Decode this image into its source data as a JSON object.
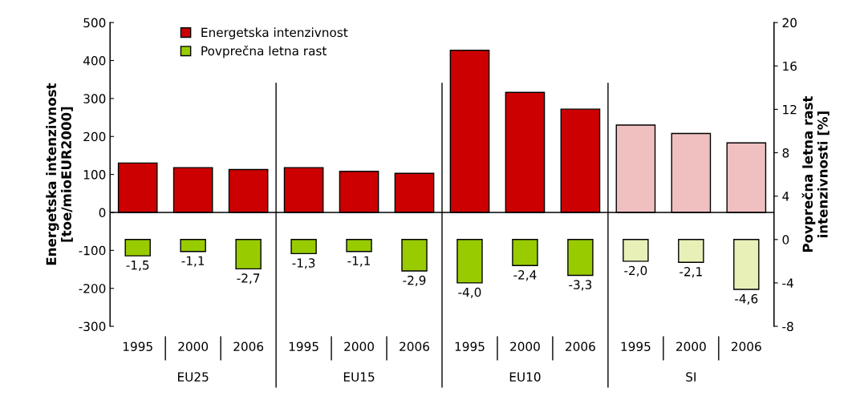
{
  "chart_data": {
    "type": "bar",
    "categories": [
      "1995",
      "2000",
      "2006",
      "1995",
      "2000",
      "2006",
      "1995",
      "2000",
      "2006",
      "1995",
      "2000",
      "2006"
    ],
    "series": [
      {
        "name": "Energetska intenzivnost",
        "color": "#cc0000",
        "colors": [
          "#cc0000",
          "#cc0000",
          "#cc0000",
          "#cc0000",
          "#cc0000",
          "#cc0000",
          "#cc0000",
          "#cc0000",
          "#cc0000",
          "#f0c0c0",
          "#f0c0c0",
          "#f0c0c0"
        ],
        "values": [
          130,
          118,
          113,
          118,
          108,
          103,
          427,
          316,
          272,
          230,
          208,
          183
        ]
      },
      {
        "name": "Povprečna letna rast",
        "color": "#99cc00",
        "colors": [
          "#99cc00",
          "#99cc00",
          "#99cc00",
          "#99cc00",
          "#99cc00",
          "#99cc00",
          "#99cc00",
          "#99cc00",
          "#99cc00",
          "#e8f0b8",
          "#e8f0b8",
          "#e8f0b8"
        ],
        "axis": "y2",
        "values": [
          -1.5,
          -1.1,
          -2.7,
          -1.3,
          -1.1,
          -2.9,
          -4.0,
          -2.4,
          -3.3,
          -2.0,
          -2.1,
          -4.6
        ],
        "value_labels": [
          "-1,5",
          "-1,1",
          "-2,7",
          "-1,3",
          "-1,1",
          "-2,9",
          "-4,0",
          "-2,4",
          "-3,3",
          "-2,0",
          "-2,1",
          "-4,6"
        ]
      }
    ],
    "ylabel": "Energetska intenzivnost\n[toe/mioEUR2000]",
    "y2label": "Povprečna letna rast\nintenzivnosti [%]",
    "ylim": [
      -300,
      500
    ],
    "yticks": [
      -300,
      -200,
      -100,
      0,
      100,
      200,
      300,
      400,
      500
    ],
    "y2lim": [
      -8,
      20
    ],
    "y2ticks": [
      -8,
      -4,
      0,
      4,
      8,
      12,
      16,
      20
    ],
    "annotations": [
      "EU25",
      "EU15",
      "EU10",
      "SI"
    ],
    "legend": "top left"
  }
}
